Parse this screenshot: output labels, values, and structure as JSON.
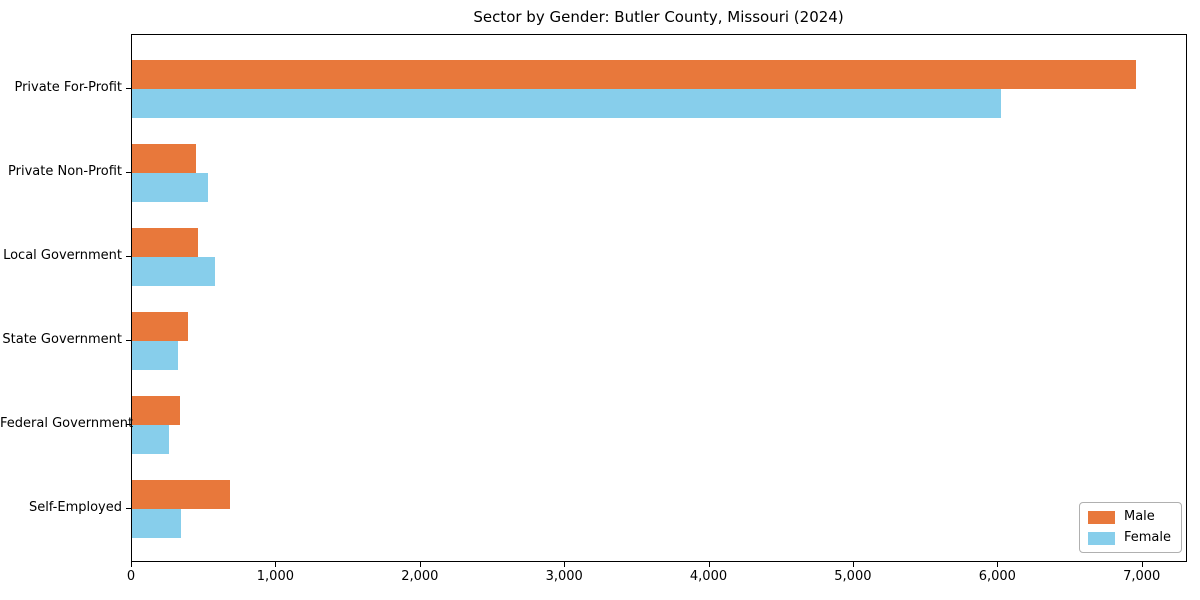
{
  "title": "Sector by Gender: Butler County, Missouri (2024)",
  "chart_data": {
    "type": "bar",
    "orientation": "horizontal",
    "title": "Sector by Gender: Butler County, Missouri (2024)",
    "categories": [
      "Private For-Profit",
      "Private Non-Profit",
      "Local Government",
      "State Government",
      "Federal Government",
      "Self-Employed"
    ],
    "series": [
      {
        "name": "Male",
        "color": "#e8783b",
        "values": [
          6950,
          445,
          455,
          385,
          330,
          675
        ]
      },
      {
        "name": "Female",
        "color": "#87ceeb",
        "values": [
          6015,
          525,
          575,
          320,
          255,
          340
        ]
      }
    ],
    "xlabel": "",
    "ylabel": "",
    "xlim": [
      0,
      7300
    ],
    "x_ticks": [
      0,
      1000,
      2000,
      3000,
      4000,
      5000,
      6000,
      7000
    ],
    "x_tick_labels": [
      "0",
      "1,000",
      "2,000",
      "3,000",
      "4,000",
      "5,000",
      "6,000",
      "7,000"
    ],
    "grid": false,
    "legend_position": "lower right"
  }
}
